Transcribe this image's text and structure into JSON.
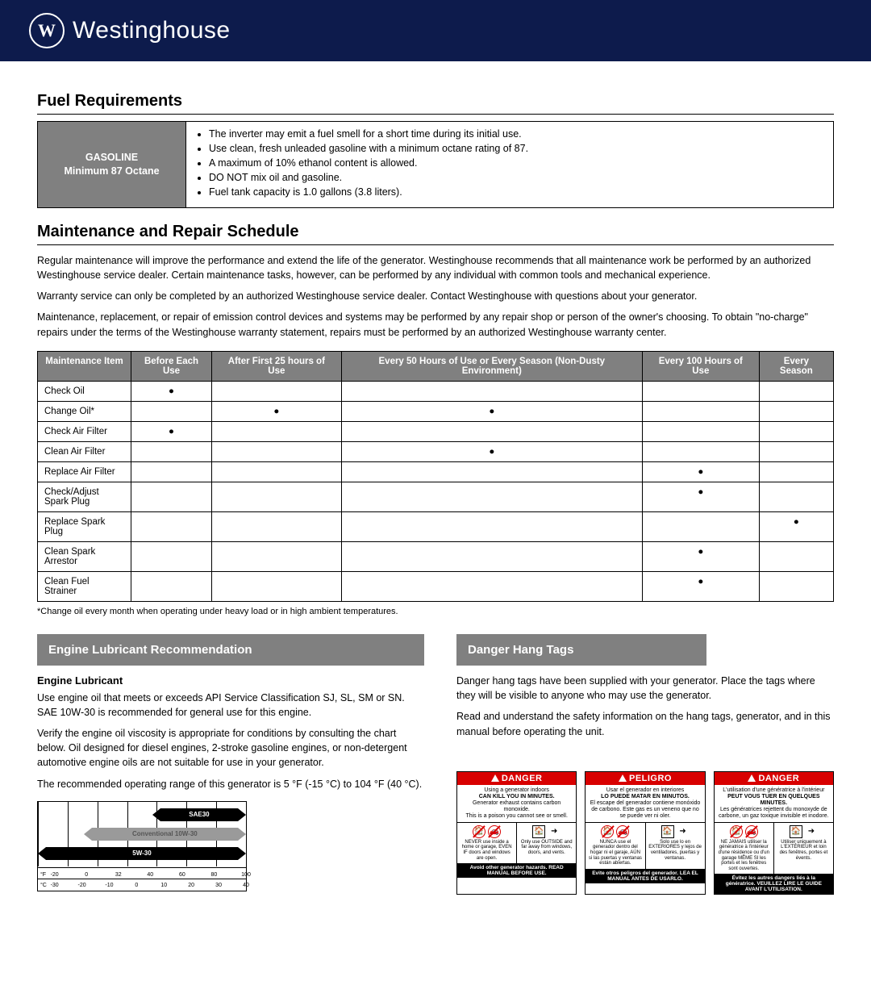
{
  "brand": "Westinghouse",
  "sections": {
    "fuel": {
      "title": "Fuel Requirements",
      "label_line1": "GASOLINE",
      "label_line2": "Minimum 87 Octane",
      "bullets": [
        "The inverter may emit a fuel smell for a short time during its initial use.",
        "Use clean, fresh unleaded gasoline with a minimum octane rating of 87.",
        "A maximum of 10% ethanol content is allowed.",
        "DO NOT mix oil and gasoline.",
        "Fuel tank capacity is 1.0 gallons (3.8 liters)."
      ]
    },
    "maint": {
      "title": "Maintenance and Repair Schedule",
      "para1": "Regular maintenance will improve the performance and extend the life of the generator. Westinghouse recommends that all maintenance work be performed by an authorized Westinghouse service dealer. Certain maintenance tasks, however, can be performed by any individual with common tools and mechanical experience.",
      "para2": "Warranty service can only be completed by an authorized Westinghouse service dealer. Contact Westinghouse with questions about your generator.",
      "para3": "Maintenance, replacement, or repair of emission control devices and systems may be performed by any repair shop or person of the owner's choosing. To obtain \"no-charge\" repairs under the terms of the Westinghouse warranty statement, repairs must be performed by an authorized Westinghouse warranty center.",
      "columns": [
        "Maintenance Item",
        "Before Each Use",
        "After First 25 hours of Use",
        "Every 50 Hours of Use or Every Season (Non-Dusty Environment)",
        "Every 100 Hours of Use",
        "Every Season"
      ],
      "rows": [
        [
          "Check Oil",
          "●",
          "",
          "",
          "",
          ""
        ],
        [
          "Change Oil*",
          "",
          "●",
          "●",
          "",
          ""
        ],
        [
          "Check Air Filter",
          "●",
          "",
          "",
          "",
          ""
        ],
        [
          "Clean Air Filter",
          "",
          "",
          "●",
          "",
          ""
        ],
        [
          "Replace Air Filter",
          "",
          "",
          "",
          "●",
          ""
        ],
        [
          "Check/Adjust Spark Plug",
          "",
          "",
          "",
          "●",
          ""
        ],
        [
          "Replace Spark Plug",
          "",
          "",
          "",
          "",
          "●"
        ],
        [
          "Clean Spark Arrestor",
          "",
          "",
          "",
          "●",
          ""
        ],
        [
          "Clean Fuel Strainer",
          "",
          "",
          "",
          "●",
          ""
        ]
      ],
      "footnote": "*Change oil every month when operating under heavy load or in high ambient temperatures."
    },
    "oil": {
      "heading": "Engine Lubricant Recommendation",
      "sub": "Engine Lubricant",
      "p1": "Use engine oil that meets or exceeds API Service Classification SJ, SL, SM or SN. SAE 10W-30 is recommended for general use for this engine.",
      "p2": "Verify the engine oil viscosity is appropriate for conditions by consulting the chart below. Oil designed for diesel engines, 2-stroke gasoline engines, or non-detergent automotive engine oils are not suitable for use in your generator.",
      "p3": "The recommended operating range of this generator is 5 °F (-15 °C) to 104 °F (40 °C).",
      "chart": {
        "bars": [
          {
            "label": "SAE30",
            "color": "#000000",
            "start_pct": 55,
            "end_pct": 100
          },
          {
            "label": "Conventional 10W-30",
            "color": "#9a9a9a",
            "start_pct": 22,
            "end_pct": 100
          },
          {
            "label": "5W-30",
            "color": "#000000",
            "start_pct": 0,
            "end_pct": 100
          }
        ],
        "f_ticks": [
          "-20",
          "0",
          "32",
          "40",
          "60",
          "80",
          "100"
        ],
        "c_ticks": [
          "-30",
          "-20",
          "-10",
          "0",
          "10",
          "20",
          "30",
          "40"
        ],
        "f_unit": "°F",
        "c_unit": "°C"
      }
    },
    "danger_section": {
      "heading": "Danger Hang Tags",
      "p1": "Danger hang tags have been supplied with your generator. Place the tags where they will be visible to anyone who may use the generator.",
      "p2": "Read and understand the safety information on the hang tags, generator, and in this manual before operating the unit.",
      "cards": [
        {
          "head": "DANGER",
          "l1": "Using a generator indoors",
          "l2": "CAN KILL YOU IN MINUTES.",
          "l3": "Generator exhaust contains carbon monoxide.",
          "l4": "This is a poison you cannot see or smell.",
          "left_cap": "NEVER use inside a home or garage, EVEN IF doors and windows are open.",
          "right_cap": "Only use OUTSIDE and far away from windows, doors, and vents.",
          "foot": "Avoid other generator hazards. READ MANUAL BEFORE USE."
        },
        {
          "head": "PELIGRO",
          "l1": "Usar el generador en interiores",
          "l2": "LO PUEDE MATAR EN MINUTOS.",
          "l3": "El escape del generador contiene monóxido de carbono. Este gas es un veneno que no se puede ver ni oler.",
          "l4": "",
          "left_cap": "NUNCA use el generador dentro del hogar ni el garaje, AÚN si las puertas y ventanas están abiertas.",
          "right_cap": "Solo use lo en EXTERIORES y lejos de ventiladores, puertas y ventanas.",
          "foot": "Evite otros peligros del generador. LEA EL MANUAL ANTES DE USARLO."
        },
        {
          "head": "DANGER",
          "l1": "L'utilisation d'une génératrice à l'intérieur",
          "l2": "PEUT VOUS TUER EN QUELQUES MINUTES.",
          "l3": "Les génératrices rejettent du monoxyde de carbone, un gaz toxique invisible et inodore.",
          "l4": "",
          "left_cap": "NE JAMAIS utiliser la génératrice à l'intérieur d'une résidence ou d'un garage MÊME SI les portes et les fenêtres sont ouvertes.",
          "right_cap": "Utiliser uniquement à L'EXTÉRIEUR et loin des fenêtres, portes et évents.",
          "foot": "Évitez les autres dangers liés à la génératrice. VEUILLEZ LIRE LE GUIDE AVANT L'UTILISATION."
        }
      ]
    }
  }
}
